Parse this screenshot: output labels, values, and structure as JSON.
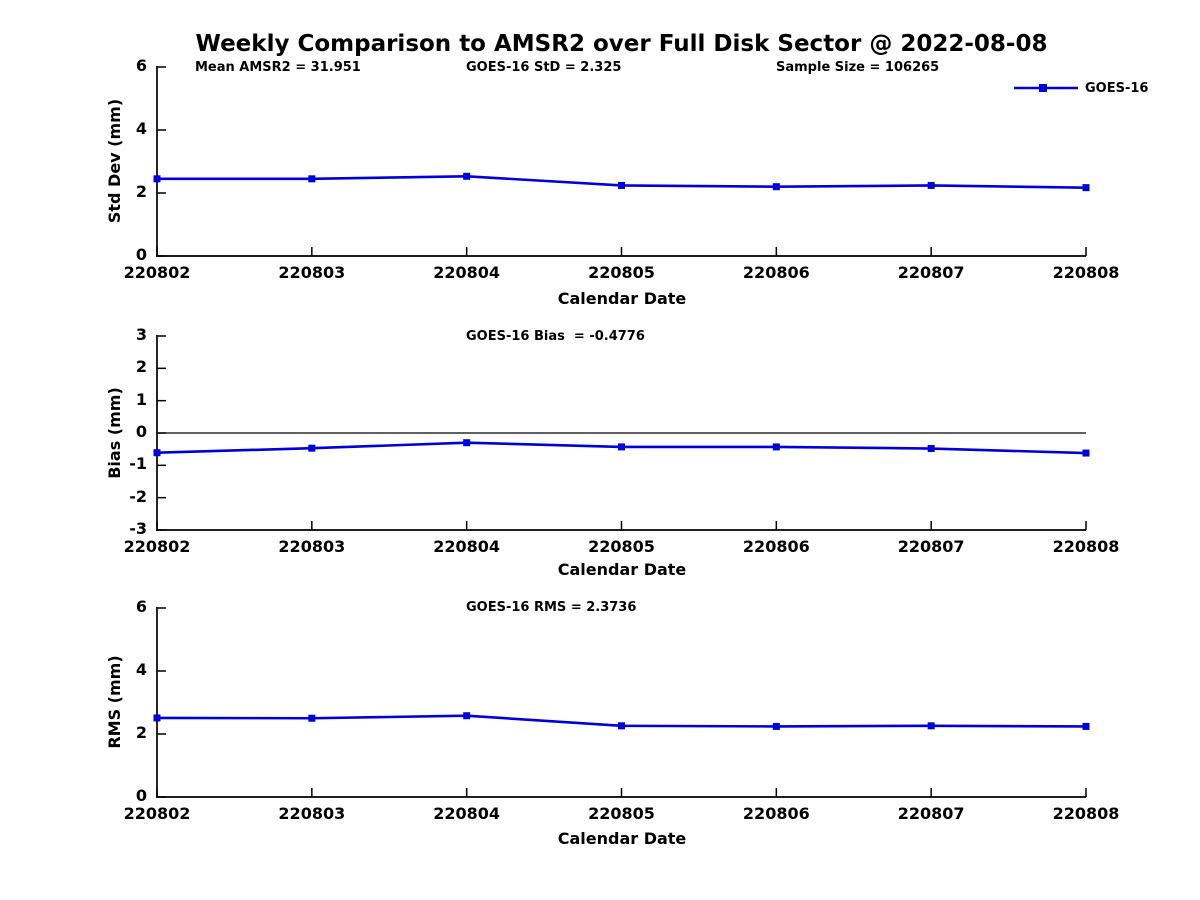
{
  "title": "Weekly Comparison to AMSR2 over Full Disk Sector @ 2022-08-08",
  "legend": {
    "label": "GOES-16"
  },
  "colors": {
    "line": "#0000dd",
    "axis": "#000000",
    "text": "#000000",
    "background": "#ffffff"
  },
  "chart_data": [
    {
      "type": "line",
      "name": "std-dev-panel",
      "ylabel": "Std Dev (mm)",
      "xlabel": "Calendar Date",
      "categories": [
        "220802",
        "220803",
        "220804",
        "220805",
        "220806",
        "220807",
        "220808"
      ],
      "series": [
        {
          "name": "GOES-16",
          "values": [
            2.45,
            2.45,
            2.53,
            2.24,
            2.2,
            2.24,
            2.17
          ]
        }
      ],
      "ylim": [
        0,
        6
      ],
      "yticks": [
        0,
        2,
        4,
        6
      ],
      "annotations": [
        "Mean AMSR2 = 31.951",
        "GOES-16 StD = 2.325",
        "Sample Size = 106265"
      ],
      "legend_position": "top-right",
      "grid": false,
      "marker": "square"
    },
    {
      "type": "line",
      "name": "bias-panel",
      "ylabel": "Bias (mm)",
      "xlabel": "Calendar Date",
      "categories": [
        "220802",
        "220803",
        "220804",
        "220805",
        "220806",
        "220807",
        "220808"
      ],
      "series": [
        {
          "name": "GOES-16",
          "values": [
            -0.61,
            -0.47,
            -0.3,
            -0.43,
            -0.43,
            -0.48,
            -0.62
          ]
        }
      ],
      "ylim": [
        -3,
        3
      ],
      "yticks": [
        -3,
        -2,
        -1,
        0,
        1,
        2,
        3
      ],
      "annotations": [
        "GOES-16 Bias  = -0.4776"
      ],
      "zero_line": true,
      "grid": false,
      "marker": "square"
    },
    {
      "type": "line",
      "name": "rms-panel",
      "ylabel": "RMS (mm)",
      "xlabel": "Calendar Date",
      "categories": [
        "220802",
        "220803",
        "220804",
        "220805",
        "220806",
        "220807",
        "220808"
      ],
      "series": [
        {
          "name": "GOES-16",
          "values": [
            2.51,
            2.5,
            2.58,
            2.26,
            2.24,
            2.26,
            2.24
          ]
        }
      ],
      "ylim": [
        0,
        6
      ],
      "yticks": [
        0,
        2,
        4,
        6
      ],
      "annotations": [
        "GOES-16 RMS = 2.3736"
      ],
      "grid": false,
      "marker": "square"
    }
  ]
}
